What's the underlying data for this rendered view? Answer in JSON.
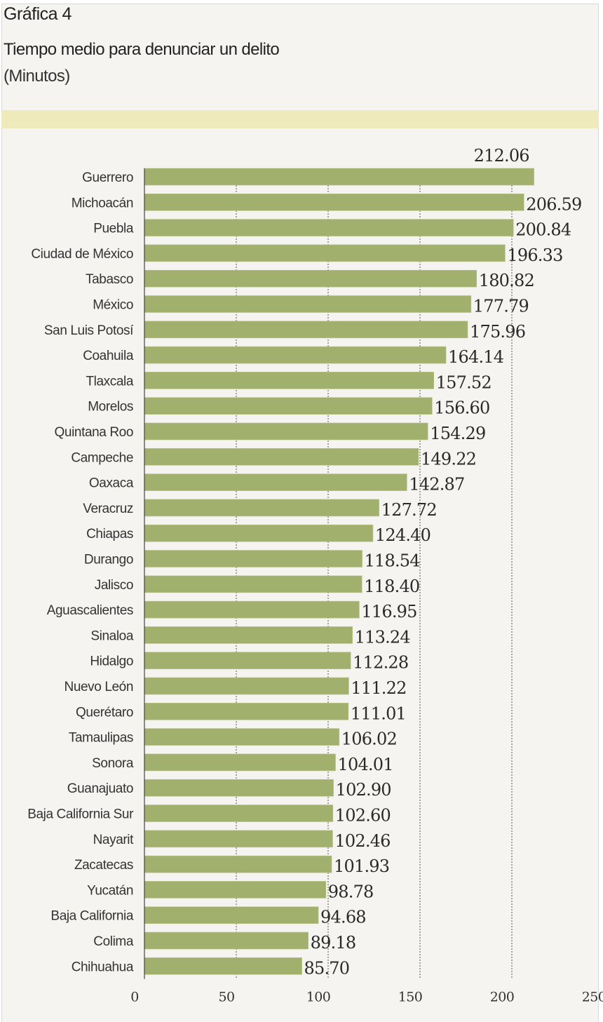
{
  "figure_label": "Gráfica 4",
  "chart_data": {
    "type": "bar",
    "orientation": "horizontal",
    "title": "Tiempo medio para denunciar un delito",
    "subtitle": "(Minutos)",
    "xlabel": "",
    "ylabel": "",
    "xlim": [
      0,
      250
    ],
    "x_ticks": [
      0,
      50,
      100,
      150,
      200,
      250
    ],
    "x_tick_labels": [
      "0",
      "50",
      "100",
      "150",
      "200",
      "250"
    ],
    "grid": "vertical dotted",
    "bar_color": "#a2b06e",
    "categories": [
      "Guerrero",
      "Michoacán",
      "Puebla",
      "Ciudad de México",
      "Tabasco",
      "México",
      "San Luis Potosí",
      "Coahuila",
      "Tlaxcala",
      "Morelos",
      "Quintana Roo",
      "Campeche",
      "Oaxaca",
      "Veracruz",
      "Chiapas",
      "Durango",
      "Jalisco",
      "Aguascalientes",
      "Sinaloa",
      "Hidalgo",
      "Nuevo León",
      "Querétaro",
      "Tamaulipas",
      "Sonora",
      "Guanajuato",
      "Baja California Sur",
      "Nayarit",
      "Zacatecas",
      "Yucatán",
      "Baja California",
      "Colima",
      "Chihuahua"
    ],
    "values": [
      212.06,
      206.59,
      200.84,
      196.33,
      180.82,
      177.79,
      175.96,
      164.14,
      157.52,
      156.6,
      154.29,
      149.22,
      142.87,
      127.72,
      124.4,
      118.54,
      118.4,
      116.95,
      113.24,
      112.28,
      111.22,
      111.01,
      106.02,
      104.01,
      102.9,
      102.6,
      102.46,
      101.93,
      98.78,
      94.68,
      89.18,
      85.7
    ],
    "value_labels": [
      "212.06",
      "206.59",
      "200.84",
      "196.33",
      "180.82",
      "177.79",
      "175.96",
      "164.14",
      "157.52",
      "156.60",
      "154.29",
      "149.22",
      "142.87",
      "127.72",
      "124.40",
      "118.54",
      "118.40",
      "116.95",
      "113.24",
      "112.28",
      "111.22",
      "111.01",
      "106.02",
      "104.01",
      "102.90",
      "102.60",
      "102.46",
      "101.93",
      "98.78",
      "94.68",
      "89.18",
      "85.70"
    ]
  }
}
